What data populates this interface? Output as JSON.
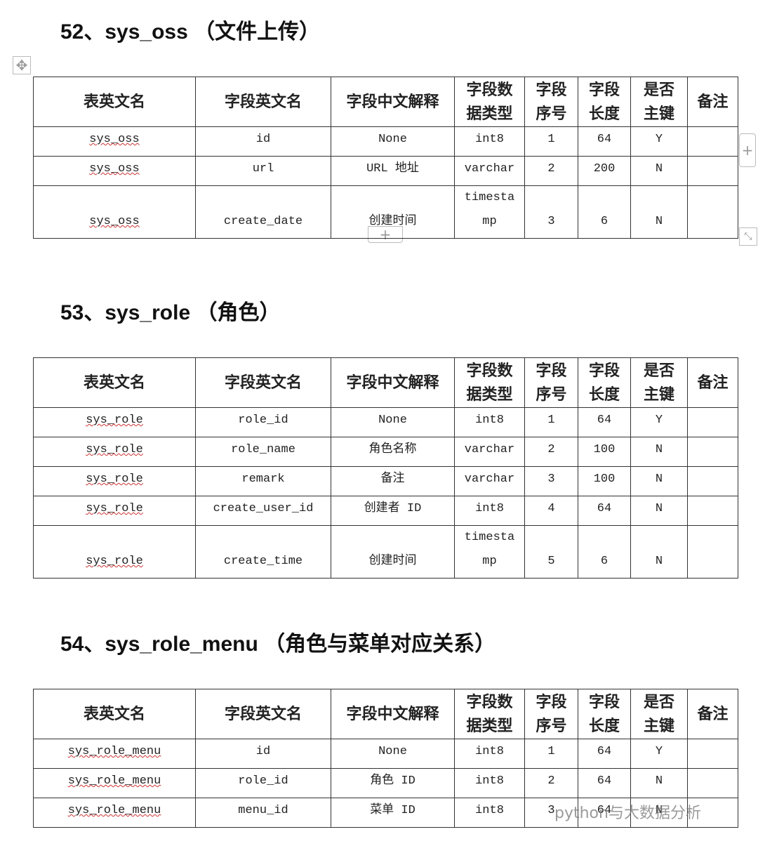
{
  "sections": [
    {
      "heading": "52、sys_oss （文件上传）",
      "table": {
        "header": [
          "表英文名",
          "字段英文名",
          "字段中文解释",
          "字段数据类型",
          "字段序号",
          "字段长度",
          "是否主键",
          "备注"
        ],
        "rows": [
          [
            "sys_oss",
            "id",
            "None",
            "int8",
            "1",
            "64",
            "Y"
          ],
          [
            "sys_oss",
            "url",
            "URL 地址",
            "varchar",
            "2",
            "200",
            "N"
          ],
          [
            "sys_oss",
            "create_date",
            "创建时间",
            "timestamp",
            "3",
            "6",
            "N"
          ]
        ]
      }
    },
    {
      "heading": "53、sys_role （角色）",
      "table": {
        "header": [
          "表英文名",
          "字段英文名",
          "字段中文解释",
          "字段数据类型",
          "字段序号",
          "字段长度",
          "是否主键",
          "备注"
        ],
        "rows": [
          [
            "sys_role",
            "role_id",
            "None",
            "int8",
            "1",
            "64",
            "Y"
          ],
          [
            "sys_role",
            "role_name",
            "角色名称",
            "varchar",
            "2",
            "100",
            "N"
          ],
          [
            "sys_role",
            "remark",
            "备注",
            "varchar",
            "3",
            "100",
            "N"
          ],
          [
            "sys_role",
            "create_user_id",
            "创建者 ID",
            "int8",
            "4",
            "64",
            "N"
          ],
          [
            "sys_role",
            "create_time",
            "创建时间",
            "timestamp",
            "5",
            "6",
            "N"
          ]
        ]
      }
    },
    {
      "heading": "54、sys_role_menu （角色与菜单对应关系）",
      "table": {
        "header": [
          "表英文名",
          "字段英文名",
          "字段中文解释",
          "字段数据类型",
          "字段序号",
          "字段长度",
          "是否主键",
          "备注"
        ],
        "rows": [
          [
            "sys_role_menu",
            "id",
            "None",
            "int8",
            "1",
            "64",
            "Y"
          ],
          [
            "sys_role_menu",
            "role_id",
            "角色 ID",
            "int8",
            "2",
            "64",
            "N"
          ],
          [
            "sys_role_menu",
            "menu_id",
            "菜单 ID",
            "int8",
            "3",
            "64",
            "N"
          ]
        ]
      }
    }
  ],
  "watermark": "python与大数据分析"
}
